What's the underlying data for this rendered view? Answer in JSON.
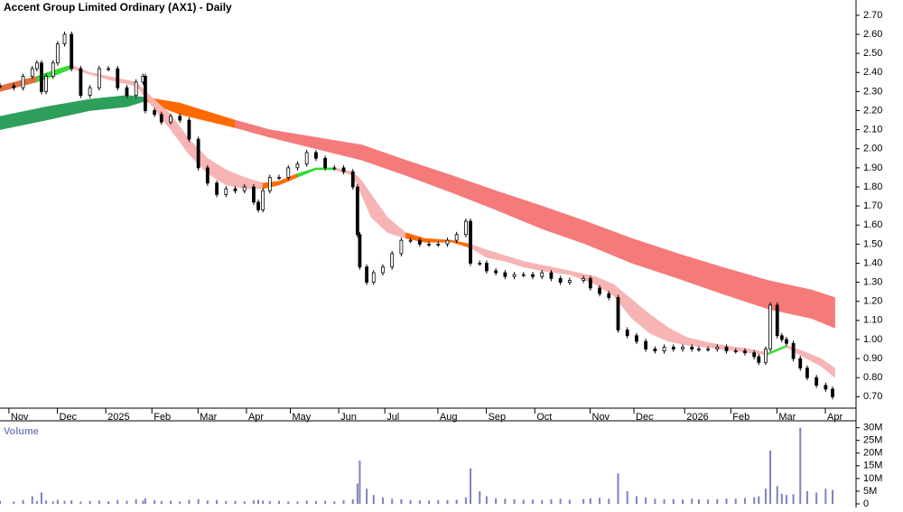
{
  "chart_data": {
    "type": "stock",
    "title": "Accent Group Limited Ordinary (AX1) - Daily",
    "volume_label": "Volume",
    "xlim": [
      0,
      370
    ],
    "xticks": [
      {
        "value": 7,
        "label": "Nov"
      },
      {
        "value": 28,
        "label": "Dec"
      },
      {
        "value": 49,
        "label": "2025"
      },
      {
        "value": 69,
        "label": "Feb"
      },
      {
        "value": 89,
        "label": "Mar"
      },
      {
        "value": 110,
        "label": "Apr"
      },
      {
        "value": 129,
        "label": "May"
      },
      {
        "value": 150,
        "label": "Jun"
      },
      {
        "value": 170,
        "label": "Jul"
      },
      {
        "value": 193,
        "label": "Aug"
      },
      {
        "value": 214,
        "label": "Sep"
      },
      {
        "value": 235,
        "label": "Oct"
      },
      {
        "value": 259,
        "label": "Nov"
      },
      {
        "value": 278,
        "label": "Dec"
      },
      {
        "value": 300,
        "label": "2026"
      },
      {
        "value": 320,
        "label": "Feb"
      },
      {
        "value": 340,
        "label": "Mar"
      },
      {
        "value": 361,
        "label": "Apr"
      }
    ],
    "ylim": [
      0.64,
      2.78
    ],
    "yticks": [
      {
        "value": 0.7,
        "label": "0.70"
      },
      {
        "value": 0.8,
        "label": "0.80"
      },
      {
        "value": 0.9,
        "label": "0.90"
      },
      {
        "value": 1.0,
        "label": "1.00"
      },
      {
        "value": 1.1,
        "label": "1.10"
      },
      {
        "value": 1.2,
        "label": "1.20"
      },
      {
        "value": 1.3,
        "label": "1.30"
      },
      {
        "value": 1.4,
        "label": "1.40"
      },
      {
        "value": 1.5,
        "label": "1.50"
      },
      {
        "value": 1.6,
        "label": "1.60"
      },
      {
        "value": 1.7,
        "label": "1.70"
      },
      {
        "value": 1.8,
        "label": "1.80"
      },
      {
        "value": 1.9,
        "label": "1.90"
      },
      {
        "value": 2.0,
        "label": "2.00"
      },
      {
        "value": 2.1,
        "label": "2.10"
      },
      {
        "value": 2.2,
        "label": "2.20"
      },
      {
        "value": 2.3,
        "label": "2.30"
      },
      {
        "value": 2.4,
        "label": "2.40"
      },
      {
        "value": 2.5,
        "label": "2.50"
      },
      {
        "value": 2.6,
        "label": "2.60"
      },
      {
        "value": 2.7,
        "label": "2.70"
      }
    ],
    "vol_ylim": [
      0,
      32000000
    ],
    "vol_yticks": [
      {
        "value": 0,
        "label": "0"
      },
      {
        "value": 5000000,
        "label": "5M"
      },
      {
        "value": 10000000,
        "label": "10M"
      },
      {
        "value": 15000000,
        "label": "15M"
      },
      {
        "value": 20000000,
        "label": "20M"
      },
      {
        "value": 25000000,
        "label": "25M"
      },
      {
        "value": 30000000,
        "label": "30M"
      }
    ],
    "price": {
      "color": "#000000",
      "volume_color": "#8080c0",
      "x": [
        0,
        6,
        10,
        14,
        16,
        18,
        20,
        23,
        25,
        28,
        31,
        35,
        39,
        43,
        47,
        51,
        55,
        59,
        62,
        63,
        67,
        70,
        74,
        78,
        82,
        86,
        90,
        94,
        98,
        102,
        106,
        110,
        112,
        114,
        117,
        121,
        125,
        129,
        133,
        137,
        141,
        145,
        149,
        153,
        155,
        156,
        159,
        162,
        166,
        170,
        174,
        178,
        182,
        186,
        190,
        194,
        198,
        202,
        204,
        208,
        211,
        215,
        219,
        223,
        227,
        231,
        235,
        239,
        243,
        247,
        253,
        256,
        260,
        264,
        268,
        272,
        276,
        280,
        284,
        288,
        292,
        296,
        300,
        303,
        307,
        311,
        315,
        319,
        323,
        327,
        329,
        332,
        334,
        337,
        339,
        341,
        344,
        347,
        350,
        354,
        358,
        361
      ],
      "close": [
        2.33,
        2.32,
        2.38,
        2.42,
        2.45,
        2.3,
        2.38,
        2.45,
        2.55,
        2.6,
        2.42,
        2.28,
        2.32,
        2.42,
        2.42,
        2.32,
        2.28,
        2.35,
        2.38,
        2.2,
        2.18,
        2.14,
        2.17,
        2.15,
        2.05,
        1.9,
        1.82,
        1.76,
        1.79,
        1.78,
        1.8,
        1.72,
        1.68,
        1.78,
        1.85,
        1.85,
        1.9,
        1.92,
        1.98,
        1.95,
        1.9,
        1.9,
        1.88,
        1.8,
        1.55,
        1.38,
        1.3,
        1.35,
        1.38,
        1.45,
        1.52,
        1.52,
        1.5,
        1.5,
        1.5,
        1.52,
        1.55,
        1.62,
        1.4,
        1.4,
        1.36,
        1.35,
        1.33,
        1.34,
        1.34,
        1.33,
        1.35,
        1.32,
        1.3,
        1.31,
        1.32,
        1.27,
        1.24,
        1.22,
        1.05,
        1.02,
        0.99,
        0.95,
        0.94,
        0.96,
        0.95,
        0.96,
        0.95,
        0.95,
        0.95,
        0.96,
        0.94,
        0.94,
        0.93,
        0.91,
        0.88,
        0.95,
        1.18,
        1.02,
        1.0,
        0.98,
        0.9,
        0.85,
        0.8,
        0.76,
        0.74,
        0.7
      ],
      "volume": [
        1200000,
        900000,
        1500000,
        3000000,
        1100000,
        4500000,
        1300000,
        1000000,
        1600000,
        1200000,
        1400000,
        900000,
        1100000,
        1300000,
        1000000,
        1500000,
        1200000,
        1800000,
        1300000,
        2200000,
        1400000,
        1100000,
        1200000,
        1000000,
        1600000,
        1900000,
        1300000,
        1500000,
        1100000,
        1200000,
        1000000,
        1400000,
        1600000,
        1300000,
        1100000,
        1200000,
        1000000,
        900000,
        1300000,
        1100000,
        1200000,
        1000000,
        1400000,
        1800000,
        8000000,
        17000000,
        6000000,
        3500000,
        2500000,
        2000000,
        1800000,
        1500000,
        1400000,
        1300000,
        1500000,
        1400000,
        1600000,
        2500000,
        14000000,
        5000000,
        3000000,
        2200000,
        2000000,
        1800000,
        1600000,
        1700000,
        1500000,
        1800000,
        2000000,
        1600000,
        1900000,
        2200000,
        2400000,
        2000000,
        12000000,
        5000000,
        3000000,
        2500000,
        2000000,
        1800000,
        1900000,
        1700000,
        2000000,
        1800000,
        1700000,
        1900000,
        2100000,
        2000000,
        2300000,
        2600000,
        3000000,
        6000000,
        21000000,
        7000000,
        4000000,
        3500000,
        3800000,
        30000000,
        5000000,
        4500000,
        6000000,
        5500000
      ]
    },
    "ribbons": [
      {
        "x": [
          0,
          20,
          39,
          55,
          63,
          78,
          102,
          117,
          137,
          157,
          176,
          196,
          215,
          235,
          254,
          274,
          294,
          313,
          333,
          352,
          362
        ],
        "upper": [
          2.17,
          2.22,
          2.26,
          2.28,
          2.27,
          2.24,
          2.15,
          2.1,
          2.06,
          2.02,
          1.94,
          1.86,
          1.78,
          1.7,
          1.62,
          1.53,
          1.45,
          1.38,
          1.31,
          1.26,
          1.22
        ],
        "lower": [
          2.1,
          2.15,
          2.2,
          2.22,
          2.25,
          2.18,
          2.11,
          2.06,
          2.0,
          1.94,
          1.86,
          1.77,
          1.68,
          1.58,
          1.5,
          1.4,
          1.32,
          1.24,
          1.16,
          1.11,
          1.06
        ],
        "colors": [
          "#2e9e5b",
          "#2e9e5b",
          "#2e9e5b",
          "#2e9e5b",
          "#ff6a00",
          "#ff6a00",
          "#f57a7a",
          "#f57a7a",
          "#f57a7a",
          "#f57a7a",
          "#f57a7a",
          "#f57a7a",
          "#f57a7a",
          "#f57a7a",
          "#f57a7a",
          "#f57a7a",
          "#f57a7a",
          "#f57a7a",
          "#f57a7a",
          "#f57a7a",
          "#f57a7a"
        ]
      },
      {
        "x": [
          0,
          16,
          23,
          31,
          39,
          51,
          59,
          65,
          74,
          82,
          90,
          98,
          106,
          114,
          121,
          129,
          137,
          145,
          153,
          157,
          161,
          168,
          176,
          184,
          196,
          204,
          211,
          219,
          227,
          235,
          247,
          258,
          266,
          274,
          282,
          290,
          298,
          305,
          313,
          325,
          333,
          341,
          348,
          356,
          362
        ],
        "upper": [
          2.33,
          2.38,
          2.41,
          2.44,
          2.4,
          2.37,
          2.35,
          2.28,
          2.18,
          2.05,
          1.95,
          1.89,
          1.85,
          1.82,
          1.83,
          1.87,
          1.9,
          1.9,
          1.88,
          1.83,
          1.76,
          1.64,
          1.56,
          1.53,
          1.52,
          1.5,
          1.47,
          1.44,
          1.41,
          1.39,
          1.36,
          1.33,
          1.29,
          1.21,
          1.13,
          1.06,
          1.01,
          0.99,
          0.97,
          0.95,
          0.93,
          0.97,
          0.94,
          0.9,
          0.85
        ],
        "lower": [
          2.3,
          2.35,
          2.38,
          2.42,
          2.39,
          2.35,
          2.33,
          2.24,
          2.1,
          1.97,
          1.87,
          1.81,
          1.79,
          1.79,
          1.81,
          1.85,
          1.89,
          1.89,
          1.86,
          1.75,
          1.64,
          1.56,
          1.53,
          1.51,
          1.51,
          1.48,
          1.43,
          1.41,
          1.38,
          1.36,
          1.34,
          1.29,
          1.23,
          1.11,
          1.03,
          0.99,
          0.97,
          0.96,
          0.95,
          0.93,
          0.92,
          0.96,
          0.91,
          0.86,
          0.8
        ],
        "colors": [
          "#e07040",
          "#33dd33",
          "#33dd33",
          "#f7b4b4",
          "#f7b4b4",
          "#f7b4b4",
          "#f7b4b4",
          "#f7b4b4",
          "#f7b4b4",
          "#f7b4b4",
          "#f7b4b4",
          "#f7b4b4",
          "#f7b4b4",
          "#ff6a00",
          "#ff6a00",
          "#33dd33",
          "#33dd33",
          "#f7b4b4",
          "#f7b4b4",
          "#f7b4b4",
          "#f7b4b4",
          "#f7b4b4",
          "#ff6a00",
          "#ff6a00",
          "#ff6a00",
          "#f7b4b4",
          "#f7b4b4",
          "#f7b4b4",
          "#f7b4b4",
          "#f7b4b4",
          "#f7b4b4",
          "#f7b4b4",
          "#f7b4b4",
          "#f7b4b4",
          "#f7b4b4",
          "#f7b4b4",
          "#f7b4b4",
          "#f7b4b4",
          "#f7b4b4",
          "#f7b4b4",
          "#33dd33",
          "#f7b4b4",
          "#f7b4b4",
          "#f7b4b4",
          "#f7b4b4"
        ]
      }
    ]
  }
}
